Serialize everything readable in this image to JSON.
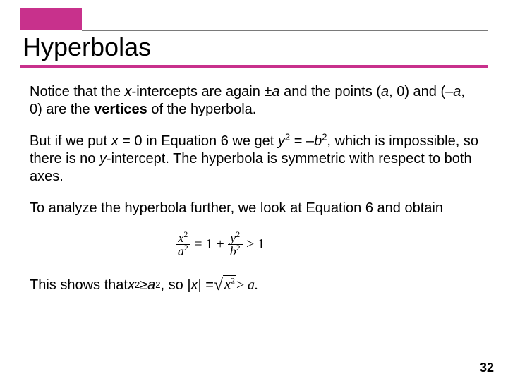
{
  "theme": {
    "accent": "#c8318c",
    "rule_gray": "#7a7a7a",
    "background": "#ffffff",
    "text": "#000000",
    "title_fontsize": 36,
    "body_fontsize": 20
  },
  "title": "Hyperbolas",
  "p1_a": "Notice that the ",
  "p1_b": "x",
  "p1_c": "-intercepts are again ±",
  "p1_d": "a",
  "p1_e": " and the points (",
  "p1_f": "a",
  "p1_g": ", 0) and (–",
  "p1_h": "a",
  "p1_i": ", 0) are the ",
  "p1_j": "vertices",
  "p1_k": " of the hyperbola.",
  "p2_a": "But if we put ",
  "p2_b": "x",
  "p2_c": " = 0 in Equation 6 we get ",
  "p2_d": "y",
  "p2_e": " = –",
  "p2_f": "b",
  "p2_g": ", which is impossible, so there is no ",
  "p2_h": "y",
  "p2_i": "-intercept. The hyperbola is symmetric with respect to both axes.",
  "p3": "To analyze the hyperbola further, we look at Equation 6 and obtain",
  "eq": {
    "lhs_num": "x",
    "lhs_den": "a",
    "eq1": " = 1 + ",
    "rhs_num": "y",
    "rhs_den": "b",
    "geq": " ≥ 1",
    "sup": "2"
  },
  "p4_a": "This shows that ",
  "p4_b": "x",
  "p4_c": " ≥ ",
  "p4_d": "a",
  "p4_e": ", so |",
  "p4_f": "x",
  "p4_g": "| = ",
  "p4_sqrt_body": "x",
  "p4_tail": " ≥ a.",
  "page_number": "32"
}
